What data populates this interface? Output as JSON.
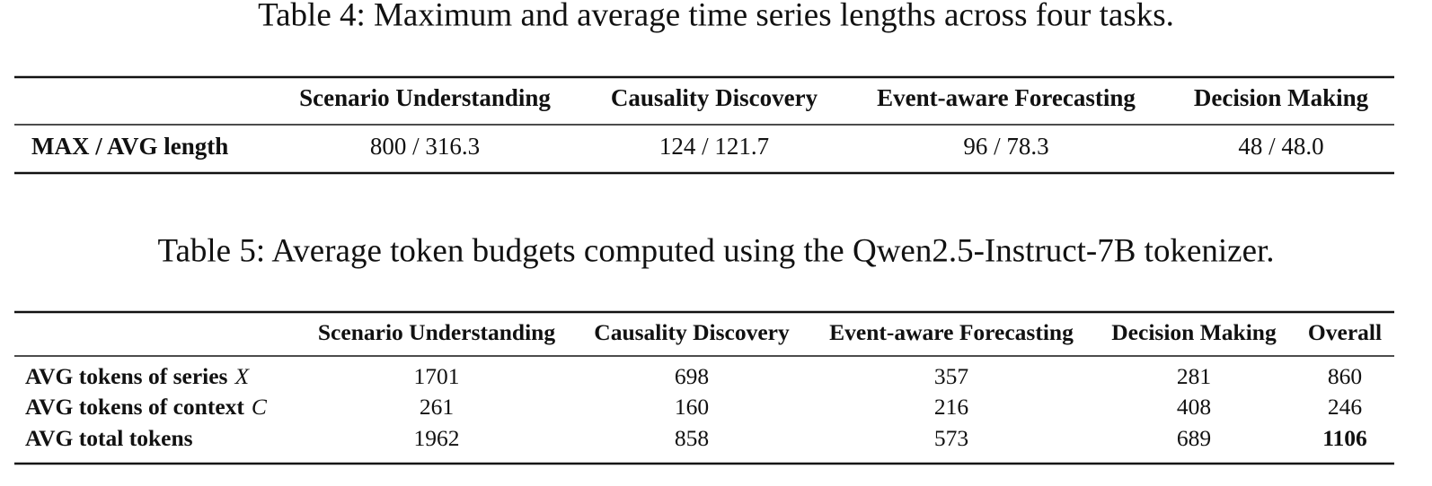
{
  "tables": [
    {
      "caption": "Table 4: Maximum and average time series lengths across four tasks.",
      "columns": [
        "Scenario Understanding",
        "Causality Discovery",
        "Event-aware Forecasting",
        "Decision Making"
      ],
      "rows": [
        {
          "label": "MAX / AVG length",
          "cells": [
            "800 / 316.3",
            "124 / 121.7",
            "96 / 78.3",
            "48 / 48.0"
          ]
        }
      ]
    },
    {
      "caption": "Table 5: Average token budgets computed using the Qwen2.5-Instruct-7B tokenizer.",
      "columns": [
        "Scenario Understanding",
        "Causality Discovery",
        "Event-aware Forecasting",
        "Decision Making",
        "Overall"
      ],
      "rows": [
        {
          "label": "AVG tokens of series",
          "symbol": "X",
          "cells": [
            1701,
            698,
            357,
            281,
            860
          ]
        },
        {
          "label": "AVG tokens of context",
          "symbol": "C",
          "cells": [
            261,
            160,
            216,
            408,
            246
          ]
        },
        {
          "label": "AVG total tokens",
          "cells": [
            1962,
            858,
            573,
            689,
            1106
          ]
        }
      ]
    }
  ]
}
